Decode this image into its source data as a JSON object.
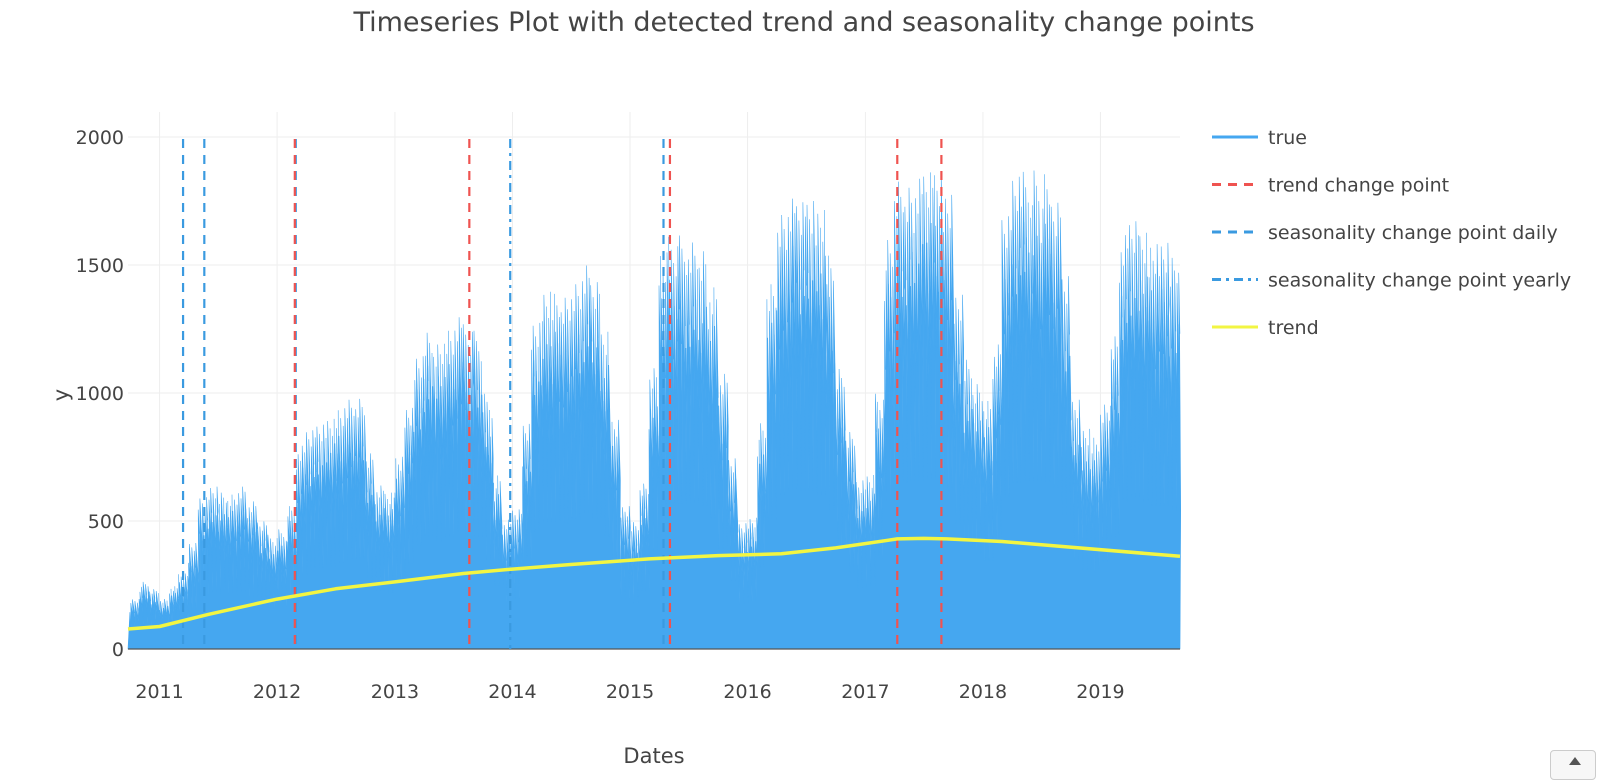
{
  "chart_data": {
    "type": "area",
    "title": "Timeseries Plot with detected trend and seasonality change points",
    "xlabel": "Dates",
    "ylabel": "y",
    "xlim": [
      "2010-09-25",
      "2019-09-05"
    ],
    "ylim": [
      0,
      2000
    ],
    "x_ticks": [
      "2011",
      "2012",
      "2013",
      "2014",
      "2015",
      "2016",
      "2017",
      "2018",
      "2019"
    ],
    "y_ticks": [
      0,
      500,
      1000,
      1500,
      2000
    ],
    "grid": true,
    "legend_position": "right",
    "legend": [
      {
        "label": "true",
        "color": "#45a7f0",
        "dash": "solid"
      },
      {
        "label": "trend change point",
        "color": "#ef5350",
        "dash": "dash"
      },
      {
        "label": "seasonality change point daily",
        "color": "#3a9ae0",
        "dash": "dash"
      },
      {
        "label": "seasonality change point yearly",
        "color": "#3a9ae0",
        "dash": "dashdot"
      },
      {
        "label": "trend",
        "color": "#f2f542",
        "dash": "solid"
      }
    ],
    "series": [
      {
        "name": "true",
        "color": "#45a7f0",
        "x": [
          "2010-10-01",
          "2010-11-01",
          "2010-12-01",
          "2011-01-01",
          "2011-02-01",
          "2011-03-01",
          "2011-04-01",
          "2011-05-01",
          "2011-06-01",
          "2011-07-01",
          "2011-08-01",
          "2011-09-01",
          "2011-10-01",
          "2011-11-01",
          "2011-12-01",
          "2012-01-01",
          "2012-02-01",
          "2012-03-01",
          "2012-04-01",
          "2012-05-01",
          "2012-06-01",
          "2012-07-01",
          "2012-08-01",
          "2012-09-01",
          "2012-10-01",
          "2012-11-01",
          "2012-12-01",
          "2013-01-01",
          "2013-02-01",
          "2013-03-01",
          "2013-04-01",
          "2013-05-01",
          "2013-06-01",
          "2013-07-01",
          "2013-08-01",
          "2013-09-01",
          "2013-10-01",
          "2013-11-01",
          "2013-12-01",
          "2014-01-01",
          "2014-02-01",
          "2014-03-01",
          "2014-04-01",
          "2014-05-01",
          "2014-06-01",
          "2014-07-01",
          "2014-08-01",
          "2014-09-01",
          "2014-10-01",
          "2014-11-01",
          "2014-12-01",
          "2015-01-01",
          "2015-02-01",
          "2015-03-01",
          "2015-04-01",
          "2015-05-01",
          "2015-06-01",
          "2015-07-01",
          "2015-08-01",
          "2015-09-01",
          "2015-10-01",
          "2015-11-01",
          "2015-12-01",
          "2016-01-01",
          "2016-02-01",
          "2016-03-01",
          "2016-04-01",
          "2016-05-01",
          "2016-06-01",
          "2016-07-01",
          "2016-08-01",
          "2016-09-01",
          "2016-10-01",
          "2016-11-01",
          "2016-12-01",
          "2017-01-01",
          "2017-02-01",
          "2017-03-01",
          "2017-04-01",
          "2017-05-01",
          "2017-06-01",
          "2017-07-01",
          "2017-08-01",
          "2017-09-01",
          "2017-10-01",
          "2017-11-01",
          "2017-12-01",
          "2018-01-01",
          "2018-02-01",
          "2018-03-01",
          "2018-04-01",
          "2018-05-01",
          "2018-06-01",
          "2018-07-01",
          "2018-08-01",
          "2018-09-01",
          "2018-10-01",
          "2018-11-01",
          "2018-12-01",
          "2019-01-01",
          "2019-02-01",
          "2019-03-01",
          "2019-04-01",
          "2019-05-01",
          "2019-06-01",
          "2019-07-01",
          "2019-08-01",
          "2019-09-01"
        ],
        "values": [
          200,
          270,
          240,
          200,
          250,
          300,
          420,
          600,
          640,
          620,
          610,
          640,
          580,
          500,
          450,
          470,
          560,
          820,
          880,
          900,
          920,
          960,
          1000,
          1000,
          780,
          650,
          620,
          760,
          950,
          1150,
          1250,
          1200,
          1250,
          1300,
          1280,
          1250,
          1000,
          700,
          520,
          560,
          900,
          1300,
          1420,
          1420,
          1400,
          1450,
          1520,
          1450,
          1250,
          900,
          560,
          500,
          650,
          1100,
          1600,
          1620,
          1620,
          1640,
          1600,
          1450,
          1100,
          760,
          500,
          520,
          900,
          1450,
          1720,
          1780,
          1760,
          1760,
          1720,
          1550,
          1100,
          850,
          680,
          700,
          1000,
          1650,
          1880,
          1850,
          1880,
          1900,
          1900,
          1800,
          1400,
          1150,
          1050,
          980,
          1200,
          1700,
          1850,
          1880,
          1880,
          1860,
          1800,
          1500,
          1000,
          880,
          850,
          980,
          1250,
          1650,
          1700,
          1650,
          1600,
          1600,
          1550,
          1550
        ]
      },
      {
        "name": "trend",
        "color": "#f2f542",
        "x": [
          "2010-09-25",
          "2011-01-01",
          "2011-06-01",
          "2012-01-01",
          "2012-07-01",
          "2013-01-01",
          "2013-08-01",
          "2014-01-01",
          "2014-07-01",
          "2015-03-01",
          "2015-10-01",
          "2016-04-15",
          "2016-10-01",
          "2017-04-10",
          "2017-07-01",
          "2017-09-10",
          "2018-03-01",
          "2019-09-05"
        ],
        "values": [
          78,
          88,
          135,
          195,
          235,
          262,
          295,
          312,
          330,
          352,
          365,
          372,
          395,
          430,
          432,
          430,
          420,
          362
        ]
      }
    ],
    "trend_change_points": [
      "2012-02-25",
      "2013-08-20",
      "2015-05-05",
      "2017-04-10",
      "2017-08-25"
    ],
    "seasonality_change_points_daily": [
      "2011-03-15",
      "2011-05-20",
      "2012-02-28",
      "2015-04-15"
    ],
    "seasonality_change_points_yearly": [
      "2013-12-25"
    ]
  }
}
